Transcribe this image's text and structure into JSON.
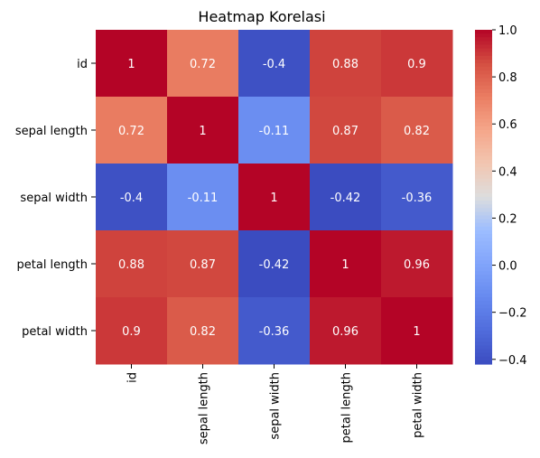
{
  "chart_data": {
    "type": "heatmap",
    "title": "Heatmap Korelasi",
    "xlabel": "",
    "ylabel": "",
    "row_labels": [
      "id",
      "sepal length",
      "sepal width",
      "petal length",
      "petal width"
    ],
    "col_labels": [
      "id",
      "sepal length",
      "sepal width",
      "petal length",
      "petal width"
    ],
    "values": [
      [
        1,
        0.72,
        -0.4,
        0.88,
        0.9
      ],
      [
        0.72,
        1,
        -0.11,
        0.87,
        0.82
      ],
      [
        -0.4,
        -0.11,
        1,
        -0.42,
        -0.36
      ],
      [
        0.88,
        0.87,
        -0.42,
        1,
        0.96
      ],
      [
        0.9,
        0.82,
        -0.36,
        0.96,
        1
      ]
    ],
    "annotations": [
      [
        "1",
        "0.72",
        "-0.4",
        "0.88",
        "0.9"
      ],
      [
        "0.72",
        "1",
        "-0.11",
        "0.87",
        "0.82"
      ],
      [
        "-0.4",
        "-0.11",
        "1",
        "-0.42",
        "-0.36"
      ],
      [
        "0.88",
        "0.87",
        "-0.42",
        "1",
        "0.96"
      ],
      [
        "0.9",
        "0.82",
        "-0.36",
        "0.96",
        "1"
      ]
    ],
    "colormap": "coolwarm",
    "vmin": -0.42,
    "vmax": 1,
    "colorbar_ticks": [
      1.0,
      0.8,
      0.6,
      0.4,
      0.2,
      0.0,
      -0.2,
      -0.4
    ],
    "colorbar_tick_labels": [
      "1.0",
      "0.8",
      "0.6",
      "0.4",
      "0.2",
      "0.0",
      "−0.2",
      "−0.4"
    ],
    "grid": false,
    "legend": "colorbar-right"
  }
}
